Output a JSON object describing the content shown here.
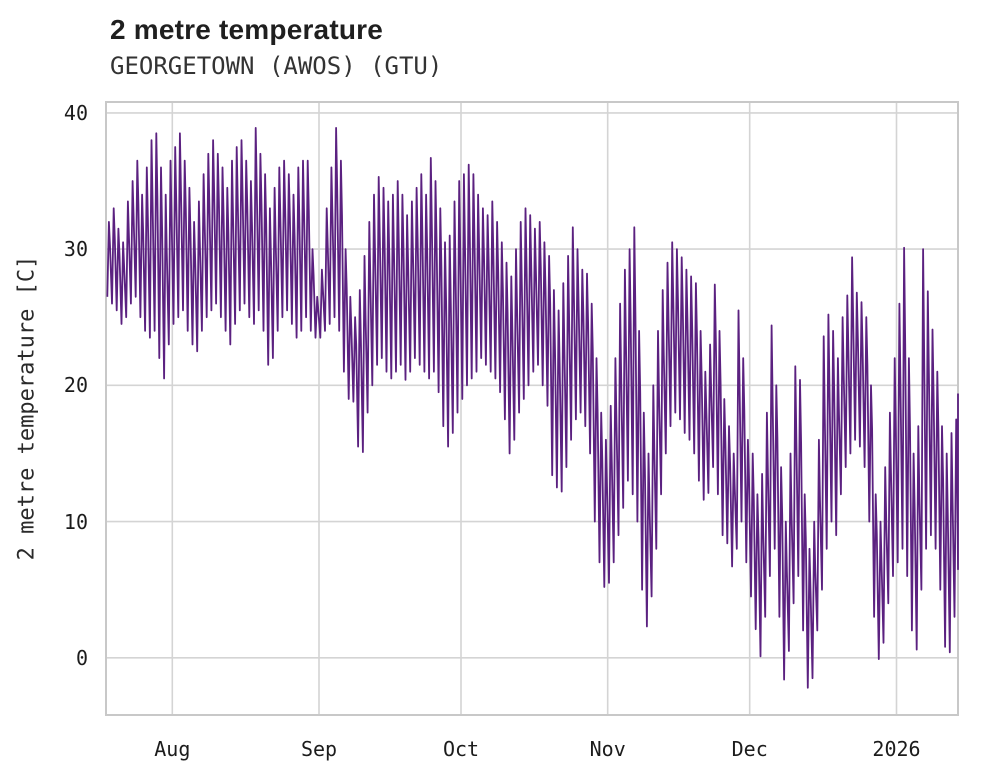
{
  "header": {
    "title": "2 metre temperature",
    "subtitle": "GEORGETOWN (AWOS) (GTU)"
  },
  "chart_data": {
    "type": "line",
    "title": "2 metre temperature",
    "subtitle": "GEORGETOWN (AWOS) (GTU)",
    "xlabel": "",
    "ylabel": "2 metre temperature [C]",
    "units": "C",
    "series_name": "2 metre temperature",
    "legend": "none",
    "grid": true,
    "line_color": "#5b2180",
    "grid_color": "#d4d4d4",
    "spine_color": "#c8c8c8",
    "ylim": [
      -4.2,
      40.8
    ],
    "y_ticks": [
      0,
      10,
      20,
      30,
      40
    ],
    "x_end_day": 180,
    "x_ticks": [
      {
        "day": 14,
        "label": "Aug"
      },
      {
        "day": 45,
        "label": "Sep"
      },
      {
        "day": 75,
        "label": "Oct"
      },
      {
        "day": 106,
        "label": "Nov"
      },
      {
        "day": 136,
        "label": "Dec"
      },
      {
        "day": 167,
        "label": "2026"
      }
    ],
    "sampling_note": "hourly series depicted; reconstructed here as daily min/max envelope, day 0 = mid-July 2025, ticks mark month starts",
    "daily_lo": [
      26.5,
      26,
      25.5,
      24.5,
      25,
      26,
      26.5,
      25,
      24,
      23.5,
      24,
      22,
      20.5,
      23,
      24.5,
      25,
      25.5,
      24,
      23,
      22.5,
      24,
      25,
      25.5,
      26,
      25,
      24,
      23,
      24.5,
      25.5,
      26,
      25,
      24.5,
      25.5,
      24,
      21.5,
      22,
      24,
      25,
      25.5,
      24.5,
      23.5,
      24,
      25,
      24,
      23.5,
      23.5,
      24,
      24.5,
      25,
      24,
      21,
      19,
      18.8,
      15.5,
      15.1,
      18,
      20,
      21.5,
      22,
      21,
      20.5,
      21,
      21.5,
      20.4,
      21,
      22,
      21.5,
      21,
      20.5,
      21,
      19.5,
      17,
      15.5,
      16.5,
      18,
      19,
      20,
      20.5,
      21,
      22,
      21.5,
      21,
      20.5,
      19.5,
      17.5,
      15,
      16,
      18,
      19,
      20,
      21,
      21.5,
      20,
      18.5,
      13.4,
      12.5,
      12.2,
      14,
      16,
      17.5,
      18,
      17,
      15,
      10,
      7,
      5.2,
      5.5,
      7,
      9,
      11,
      13,
      12,
      10,
      5,
      2.3,
      4.5,
      8,
      12,
      15,
      17,
      18,
      17.5,
      16.5,
      16,
      15,
      13,
      11.6,
      12.1,
      14,
      12,
      9,
      8.4,
      6.7,
      8,
      10,
      7,
      4.5,
      2.1,
      0.1,
      3,
      6,
      8,
      3,
      -1.6,
      0.5,
      4,
      6,
      2,
      -2.2,
      -1.5,
      2,
      5,
      8,
      10,
      9,
      12,
      14,
      15,
      16,
      15.5,
      14,
      10,
      3,
      -0.1,
      1.1,
      4,
      6,
      7,
      8,
      6,
      2,
      0.6,
      5,
      8,
      9,
      8,
      5,
      0.8,
      0.4,
      3,
      6.5
    ],
    "daily_hi": [
      32,
      33,
      31.5,
      30.5,
      33.5,
      35,
      36.5,
      34,
      36,
      38,
      38.5,
      36,
      34,
      36.5,
      37.5,
      38.5,
      36.5,
      34.5,
      32,
      33.5,
      35.5,
      37,
      38,
      37,
      36,
      34.5,
      36.5,
      37.5,
      38,
      36.5,
      35,
      38.9,
      37,
      35.5,
      33,
      34.5,
      36,
      36.5,
      35.5,
      34,
      36,
      36.5,
      36.5,
      30,
      26.5,
      28.5,
      33,
      36,
      38.9,
      36.5,
      30,
      26.5,
      25,
      27,
      29.5,
      32,
      34,
      35.3,
      34.5,
      33.5,
      34,
      35,
      34,
      32.5,
      33.5,
      34.5,
      35.5,
      34,
      36.7,
      35,
      33,
      30.5,
      31,
      33.5,
      35,
      35.5,
      36.2,
      35.5,
      34,
      33,
      32.5,
      33.5,
      32,
      30.5,
      29,
      28,
      30,
      32,
      33,
      32.5,
      31.5,
      32,
      30.5,
      29.5,
      27,
      25.5,
      27.5,
      29.5,
      31.6,
      30,
      28.5,
      28.2,
      26,
      22,
      18,
      16,
      18.5,
      22,
      26,
      28.5,
      30,
      31.6,
      24,
      18,
      15,
      20,
      24,
      27,
      29,
      30.5,
      30,
      29.4,
      28.5,
      28,
      27.5,
      24,
      21,
      23,
      27.4,
      24,
      19,
      17,
      15,
      25.5,
      22,
      16,
      15,
      12,
      13.5,
      18,
      24.4,
      20,
      14,
      10,
      15,
      21.4,
      20.4,
      12,
      8,
      10,
      16,
      23.6,
      25.2,
      24,
      22,
      25,
      26.6,
      29.4,
      26.8,
      26.1,
      25,
      20,
      12,
      10,
      14,
      18,
      22,
      26,
      30.1,
      22,
      15,
      17,
      30,
      26.9,
      24.1,
      21,
      17,
      15,
      16.5,
      17.5,
      19.4
    ]
  }
}
